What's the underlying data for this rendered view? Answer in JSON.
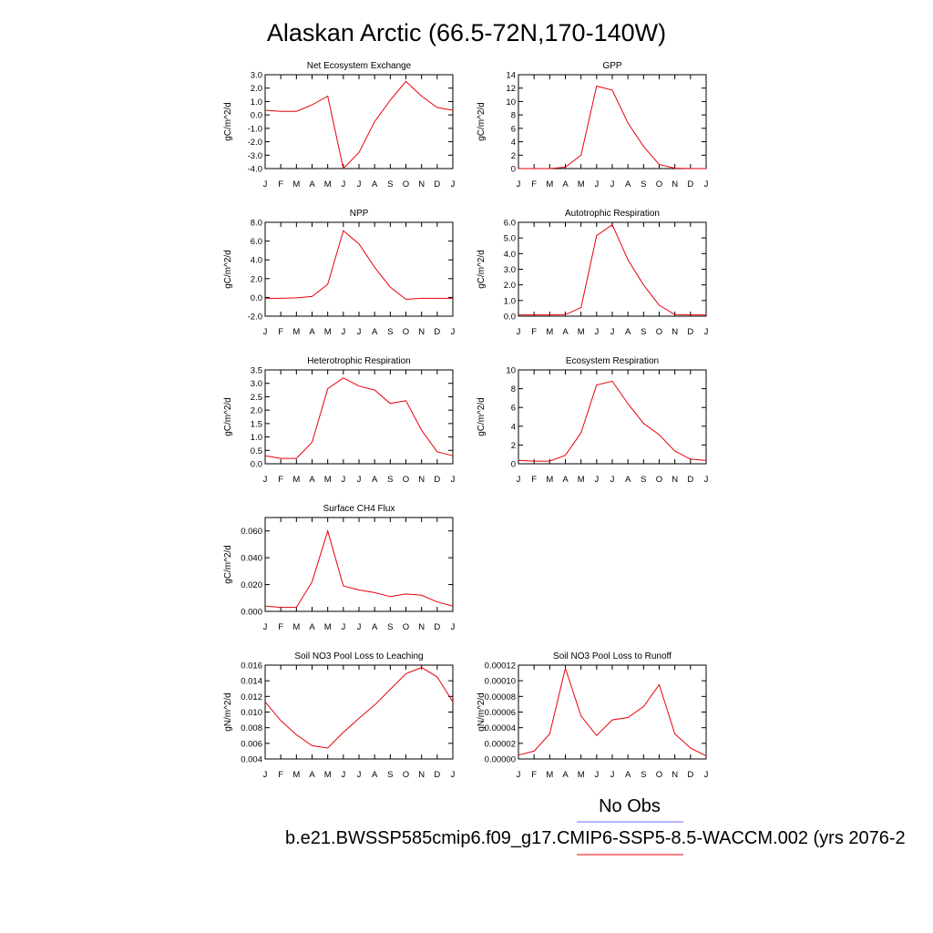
{
  "figure": {
    "title": "Alaskan Arctic (66.5-72N,170-140W)",
    "colors": {
      "model": "#e8000b",
      "obs": "#6b6bff",
      "axes": "#000000"
    },
    "legend": [
      {
        "label": "No Obs",
        "color": "#6b6bff"
      },
      {
        "label": "b.e21.BWSSP585cmip6.f09_g17.CMIP6-SSP5-8.5-WACCM.002 (yrs 2076-2",
        "color": "#e8000b"
      }
    ]
  },
  "chart_data": [
    {
      "type": "line",
      "title": "Net Ecosystem Exchange",
      "ylabel": "gC/m^2/d",
      "ylim": [
        -4.0,
        3.0
      ],
      "x": [
        "J",
        "F",
        "M",
        "A",
        "M",
        "J",
        "J",
        "A",
        "S",
        "O",
        "N",
        "D",
        "J"
      ],
      "yticks": [
        "3.0",
        "2.0",
        "1.0",
        "0.0",
        "-1.0",
        "-2.0",
        "-3.0",
        "-4.0"
      ],
      "ytick_values": [
        3,
        2,
        1,
        0,
        -1,
        -2,
        -3,
        -4
      ],
      "series": [
        {
          "values": [
            0.35,
            0.27,
            0.27,
            0.75,
            1.4,
            -4.0,
            -2.8,
            -0.5,
            1.1,
            2.5,
            1.4,
            0.55,
            0.35
          ]
        }
      ]
    },
    {
      "type": "line",
      "title": "GPP",
      "ylabel": "gC/m^2/d",
      "ylim": [
        0,
        14
      ],
      "x": [
        "J",
        "F",
        "M",
        "A",
        "M",
        "J",
        "J",
        "A",
        "S",
        "O",
        "N",
        "D",
        "J"
      ],
      "yticks": [
        "14",
        "12",
        "10",
        "8",
        "6",
        "4",
        "2",
        "0"
      ],
      "ytick_values": [
        14,
        12,
        10,
        8,
        6,
        4,
        2,
        0
      ],
      "series": [
        {
          "values": [
            0.0,
            0.0,
            0.0,
            0.2,
            2.0,
            12.3,
            11.7,
            6.8,
            3.3,
            0.6,
            0.05,
            0.0,
            0.0
          ]
        }
      ]
    },
    {
      "type": "line",
      "title": "NPP",
      "ylabel": "gC/m^2/d",
      "ylim": [
        -2.0,
        8.0
      ],
      "x": [
        "J",
        "F",
        "M",
        "A",
        "M",
        "J",
        "J",
        "A",
        "S",
        "O",
        "N",
        "D",
        "J"
      ],
      "yticks": [
        "8.0",
        "6.0",
        "4.0",
        "2.0",
        "0.0",
        "-2.0"
      ],
      "ytick_values": [
        8,
        6,
        4,
        2,
        0,
        -2
      ],
      "series": [
        {
          "values": [
            -0.1,
            -0.1,
            -0.05,
            0.1,
            1.4,
            7.1,
            5.7,
            3.2,
            1.1,
            -0.2,
            -0.1,
            -0.1,
            -0.1
          ]
        }
      ]
    },
    {
      "type": "line",
      "title": "Autotrophic Respiration",
      "ylabel": "gC/m^2/d",
      "ylim": [
        0.0,
        6.0
      ],
      "x": [
        "J",
        "F",
        "M",
        "A",
        "M",
        "J",
        "J",
        "A",
        "S",
        "O",
        "N",
        "D",
        "J"
      ],
      "yticks": [
        "6.0",
        "5.0",
        "4.0",
        "3.0",
        "2.0",
        "1.0",
        "0.0"
      ],
      "ytick_values": [
        6,
        5,
        4,
        3,
        2,
        1,
        0
      ],
      "series": [
        {
          "values": [
            0.08,
            0.08,
            0.08,
            0.1,
            0.55,
            5.15,
            5.85,
            3.6,
            2.0,
            0.7,
            0.1,
            0.08,
            0.08
          ]
        }
      ]
    },
    {
      "type": "line",
      "title": "Heterotrophic Respiration",
      "ylabel": "gC/m^2/d",
      "ylim": [
        0.0,
        3.5
      ],
      "x": [
        "J",
        "F",
        "M",
        "A",
        "M",
        "J",
        "J",
        "A",
        "S",
        "O",
        "N",
        "D",
        "J"
      ],
      "yticks": [
        "3.5",
        "3.0",
        "2.5",
        "2.0",
        "1.5",
        "1.0",
        "0.5",
        "0.0"
      ],
      "ytick_values": [
        3.5,
        3.0,
        2.5,
        2.0,
        1.5,
        1.0,
        0.5,
        0.0
      ],
      "series": [
        {
          "values": [
            0.3,
            0.2,
            0.2,
            0.8,
            2.8,
            3.2,
            2.9,
            2.75,
            2.25,
            2.35,
            1.25,
            0.45,
            0.3
          ]
        }
      ]
    },
    {
      "type": "line",
      "title": "Ecosystem Respiration",
      "ylabel": "gC/m^2/d",
      "ylim": [
        0,
        10
      ],
      "x": [
        "J",
        "F",
        "M",
        "A",
        "M",
        "J",
        "J",
        "A",
        "S",
        "O",
        "N",
        "D",
        "J"
      ],
      "yticks": [
        "10",
        "8",
        "6",
        "4",
        "2",
        "0"
      ],
      "ytick_values": [
        10,
        8,
        6,
        4,
        2,
        0
      ],
      "series": [
        {
          "values": [
            0.35,
            0.28,
            0.28,
            0.9,
            3.3,
            8.4,
            8.8,
            6.4,
            4.3,
            3.1,
            1.35,
            0.5,
            0.35
          ]
        }
      ]
    },
    {
      "type": "line",
      "title": "Surface CH4 Flux",
      "ylabel": "gC/m^2/d",
      "ylim": [
        0.0,
        0.07
      ],
      "x": [
        "J",
        "F",
        "M",
        "A",
        "M",
        "J",
        "J",
        "A",
        "S",
        "O",
        "N",
        "D",
        "J"
      ],
      "yticks": [
        "0.060",
        "0.040",
        "0.020",
        "0.000"
      ],
      "ytick_values": [
        0.06,
        0.04,
        0.02,
        0.0
      ],
      "series": [
        {
          "values": [
            0.004,
            0.003,
            0.003,
            0.022,
            0.06,
            0.019,
            0.016,
            0.014,
            0.011,
            0.013,
            0.012,
            0.007,
            0.004
          ]
        }
      ]
    },
    {
      "type": "line",
      "title": "Soil NO3 Pool Loss to Leaching",
      "ylabel": "gN/m^2/d",
      "ylim": [
        0.004,
        0.016
      ],
      "x": [
        "J",
        "F",
        "M",
        "A",
        "M",
        "J",
        "J",
        "A",
        "S",
        "O",
        "N",
        "D",
        "J"
      ],
      "yticks": [
        "0.016",
        "0.014",
        "0.012",
        "0.010",
        "0.008",
        "0.006",
        "0.004"
      ],
      "ytick_values": [
        0.016,
        0.014,
        0.012,
        0.01,
        0.008,
        0.006,
        0.004
      ],
      "series": [
        {
          "values": [
            0.0113,
            0.0089,
            0.0071,
            0.0057,
            0.0054,
            0.0074,
            0.0092,
            0.0109,
            0.0129,
            0.0149,
            0.0157,
            0.0145,
            0.0113
          ]
        }
      ]
    },
    {
      "type": "line",
      "title": "Soil NO3 Pool Loss to Runoff",
      "ylabel": "gN/m^2/d",
      "ylim": [
        0.0,
        0.00012
      ],
      "x": [
        "J",
        "F",
        "M",
        "A",
        "M",
        "J",
        "J",
        "A",
        "S",
        "O",
        "N",
        "D",
        "J"
      ],
      "yticks": [
        "0.00012",
        "0.00010",
        "0.00008",
        "0.00006",
        "0.00004",
        "0.00002",
        "0.00000"
      ],
      "ytick_values": [
        0.00012,
        0.0001,
        8e-05,
        6e-05,
        4e-05,
        2e-05,
        0.0
      ],
      "series": [
        {
          "values": [
            5e-06,
            1e-05,
            3.2e-05,
            0.000116,
            5.5e-05,
            3e-05,
            5e-05,
            5.3e-05,
            6.7e-05,
            9.5e-05,
            3.2e-05,
            1.4e-05,
            4e-06
          ]
        }
      ]
    }
  ]
}
